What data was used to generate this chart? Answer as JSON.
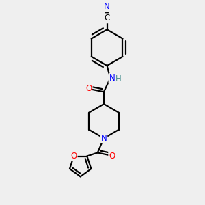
{
  "bg_color": "#efefef",
  "atom_colors": {
    "C": "#000000",
    "N": "#0000ff",
    "O": "#ff0000",
    "H": "#4a9090"
  },
  "bond_color": "#000000",
  "bond_width": 1.6,
  "font_size_atoms": 8.5,
  "xlim": [
    -1.3,
    1.3
  ],
  "ylim": [
    -2.2,
    2.3
  ]
}
